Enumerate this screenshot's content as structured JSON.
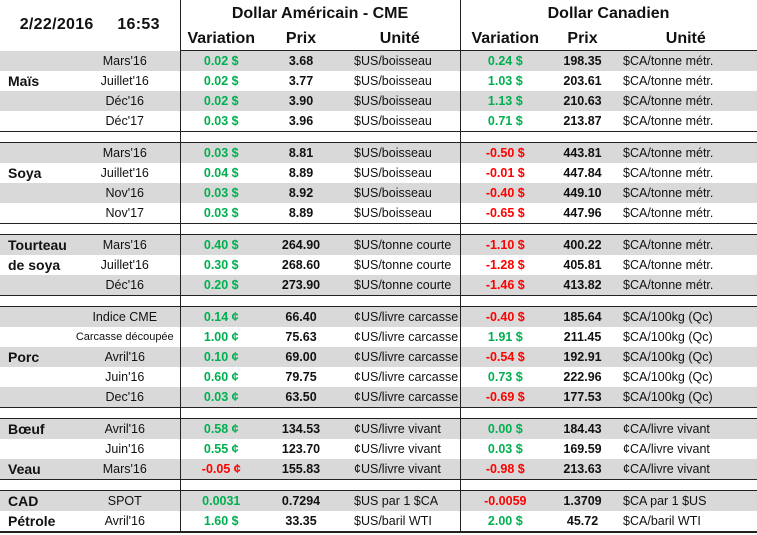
{
  "header": {
    "date": "2/22/2016",
    "time": "16:53",
    "us_title": "Dollar Américain - CME",
    "ca_title": "Dollar Canadien",
    "col_variation": "Variation",
    "col_prix": "Prix",
    "col_unite": "Unité"
  },
  "colors": {
    "positive": "#00b050",
    "negative": "#ff0000",
    "stripe": "#d9d9d9"
  },
  "blocks": [
    {
      "rows": [
        {
          "product": "",
          "contract": "Mars'16",
          "us_var": "0.02 $",
          "us_prix": "3.68",
          "us_unit": "$US/boisseau",
          "ca_var": "0.24 $",
          "ca_prix": "198.35",
          "ca_unit": "$CA/tonne métr."
        },
        {
          "product": "Maïs",
          "contract": "Juillet'16",
          "us_var": "0.02 $",
          "us_prix": "3.77",
          "us_unit": "$US/boisseau",
          "ca_var": "1.03 $",
          "ca_prix": "203.61",
          "ca_unit": "$CA/tonne métr."
        },
        {
          "product": "",
          "contract": "Déc'16",
          "us_var": "0.02 $",
          "us_prix": "3.90",
          "us_unit": "$US/boisseau",
          "ca_var": "1.13 $",
          "ca_prix": "210.63",
          "ca_unit": "$CA/tonne métr."
        },
        {
          "product": "",
          "contract": "Déc'17",
          "us_var": "0.03 $",
          "us_prix": "3.96",
          "us_unit": "$US/boisseau",
          "ca_var": "0.71 $",
          "ca_prix": "213.87",
          "ca_unit": "$CA/tonne métr."
        }
      ]
    },
    {
      "rows": [
        {
          "product": "",
          "contract": "Mars'16",
          "us_var": "0.03 $",
          "us_prix": "8.81",
          "us_unit": "$US/boisseau",
          "ca_var": "-0.50 $",
          "ca_prix": "443.81",
          "ca_unit": "$CA/tonne métr."
        },
        {
          "product": "Soya",
          "contract": "Juillet'16",
          "us_var": "0.04 $",
          "us_prix": "8.89",
          "us_unit": "$US/boisseau",
          "ca_var": "-0.01 $",
          "ca_prix": "447.84",
          "ca_unit": "$CA/tonne métr."
        },
        {
          "product": "",
          "contract": "Nov'16",
          "us_var": "0.03 $",
          "us_prix": "8.92",
          "us_unit": "$US/boisseau",
          "ca_var": "-0.40 $",
          "ca_prix": "449.10",
          "ca_unit": "$CA/tonne métr."
        },
        {
          "product": "",
          "contract": "Nov'17",
          "us_var": "0.03 $",
          "us_prix": "8.89",
          "us_unit": "$US/boisseau",
          "ca_var": "-0.65 $",
          "ca_prix": "447.96",
          "ca_unit": "$CA/tonne métr."
        }
      ]
    },
    {
      "rows": [
        {
          "product": "Tourteau",
          "contract": "Mars'16",
          "us_var": "0.40 $",
          "us_prix": "264.90",
          "us_unit": "$US/tonne courte",
          "ca_var": "-1.10 $",
          "ca_prix": "400.22",
          "ca_unit": "$CA/tonne métr."
        },
        {
          "product": "de soya",
          "contract": "Juillet'16",
          "us_var": "0.30 $",
          "us_prix": "268.60",
          "us_unit": "$US/tonne courte",
          "ca_var": "-1.28 $",
          "ca_prix": "405.81",
          "ca_unit": "$CA/tonne métr."
        },
        {
          "product": "",
          "contract": "Déc'16",
          "us_var": "0.20 $",
          "us_prix": "273.90",
          "us_unit": "$US/tonne courte",
          "ca_var": "-1.46 $",
          "ca_prix": "413.82",
          "ca_unit": "$CA/tonne métr."
        }
      ]
    },
    {
      "rows": [
        {
          "product": "",
          "contract": "Indice CME",
          "us_var": "0.14 ¢",
          "us_prix": "66.40",
          "us_unit": "¢US/livre carcasse",
          "ca_var": "-0.40 $",
          "ca_prix": "185.64",
          "ca_unit": "$CA/100kg (Qc)"
        },
        {
          "product": "",
          "contract": "Carcasse découpée",
          "us_var": "1.00 ¢",
          "us_prix": "75.63",
          "us_unit": "¢US/livre carcasse",
          "ca_var": "1.91 $",
          "ca_prix": "211.45",
          "ca_unit": "$CA/100kg (Qc)"
        },
        {
          "product": "Porc",
          "contract": "Avril'16",
          "us_var": "0.10 ¢",
          "us_prix": "69.00",
          "us_unit": "¢US/livre carcasse",
          "ca_var": "-0.54 $",
          "ca_prix": "192.91",
          "ca_unit": "$CA/100kg (Qc)"
        },
        {
          "product": "",
          "contract": "Juin'16",
          "us_var": "0.60 ¢",
          "us_prix": "79.75",
          "us_unit": "¢US/livre carcasse",
          "ca_var": "0.73 $",
          "ca_prix": "222.96",
          "ca_unit": "$CA/100kg (Qc)"
        },
        {
          "product": "",
          "contract": "Dec'16",
          "us_var": "0.03 ¢",
          "us_prix": "63.50",
          "us_unit": "¢US/livre carcasse",
          "ca_var": "-0.69 $",
          "ca_prix": "177.53",
          "ca_unit": "$CA/100kg (Qc)"
        }
      ]
    },
    {
      "rows": [
        {
          "product": "Bœuf",
          "contract": "Avril'16",
          "us_var": "0.58 ¢",
          "us_prix": "134.53",
          "us_unit": "¢US/livre vivant",
          "ca_var": "0.00 $",
          "ca_prix": "184.43",
          "ca_unit": "¢CA/livre vivant"
        },
        {
          "product": "",
          "contract": "Juin'16",
          "us_var": "0.55 ¢",
          "us_prix": "123.70",
          "us_unit": "¢US/livre vivant",
          "ca_var": "0.03 $",
          "ca_prix": "169.59",
          "ca_unit": "¢CA/livre vivant"
        },
        {
          "product": "Veau",
          "contract": "Mars'16",
          "us_var": "-0.05 ¢",
          "us_prix": "155.83",
          "us_unit": "¢US/livre vivant",
          "ca_var": "-0.98 $",
          "ca_prix": "213.63",
          "ca_unit": "¢CA/livre vivant"
        }
      ]
    },
    {
      "rows": [
        {
          "product": "CAD",
          "contract": "SPOT",
          "us_var": "0.0031",
          "us_prix": "0.7294",
          "us_unit": "$US par 1 $CA",
          "ca_var": "-0.0059",
          "ca_prix": "1.3709",
          "ca_unit": "$CA par 1 $US"
        },
        {
          "product": "Pétrole",
          "contract": "Avril'16",
          "us_var": "1.60 $",
          "us_prix": "33.35",
          "us_unit": "$US/baril WTI",
          "ca_var": "2.00 $",
          "ca_prix": "45.72",
          "ca_unit": "$CA/baril WTI"
        }
      ]
    }
  ]
}
